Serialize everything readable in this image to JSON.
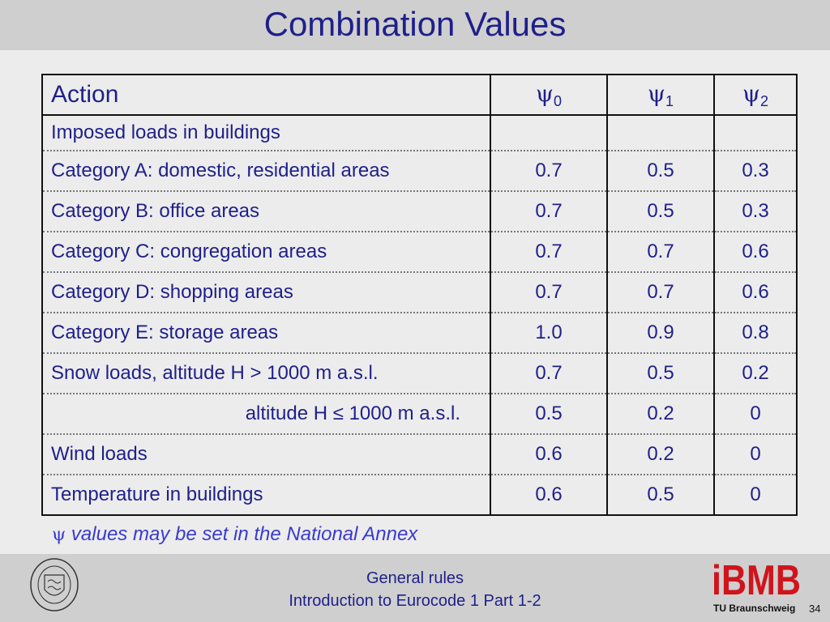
{
  "title": "Combination Values",
  "table": {
    "headers": {
      "action": "Action",
      "psi_symbol": "ψ",
      "psi0_sub": "0",
      "psi1_sub": "1",
      "psi2_sub": "2"
    },
    "rows": [
      {
        "label": "Imposed loads in buildings",
        "v0": "",
        "v1": "",
        "v2": ""
      },
      {
        "label": "Category A: domestic, residential areas",
        "v0": "0.7",
        "v1": "0.5",
        "v2": "0.3"
      },
      {
        "label": "Category B: office areas",
        "v0": "0.7",
        "v1": "0.5",
        "v2": "0.3"
      },
      {
        "label": "Category C: congregation areas",
        "v0": "0.7",
        "v1": "0.7",
        "v2": "0.6"
      },
      {
        "label": "Category D: shopping areas",
        "v0": "0.7",
        "v1": "0.7",
        "v2": "0.6"
      },
      {
        "label": "Category E: storage areas",
        "v0": "1.0",
        "v1": "0.9",
        "v2": "0.8"
      },
      {
        "label": "Snow loads, altitude H > 1000 m a.s.l.",
        "v0": "0.7",
        "v1": "0.5",
        "v2": "0.2"
      },
      {
        "label": "altitude H ≤ 1000 m a.s.l.",
        "v0": "0.5",
        "v1": "0.2",
        "v2": "0"
      },
      {
        "label": "Wind loads",
        "v0": "0.6",
        "v1": "0.2",
        "v2": "0"
      },
      {
        "label": "Temperature in buildings",
        "v0": "0.6",
        "v1": "0.5",
        "v2": "0"
      }
    ]
  },
  "note": {
    "symbol": "ψ",
    "text": " values may be set in the National Annex"
  },
  "footer": {
    "line1": "General rules",
    "line2": "Introduction to Eurocode 1 Part 1-2",
    "brand": "iBMB",
    "brand_sub": "TU Braunschweig",
    "page_number": "34",
    "seal_text": "CAROLO-WILHELMINA BRAUNSCHWEIG"
  },
  "colors": {
    "title": "#1f1f8a",
    "note": "#3a3ad0",
    "brand": "#d0141c"
  }
}
